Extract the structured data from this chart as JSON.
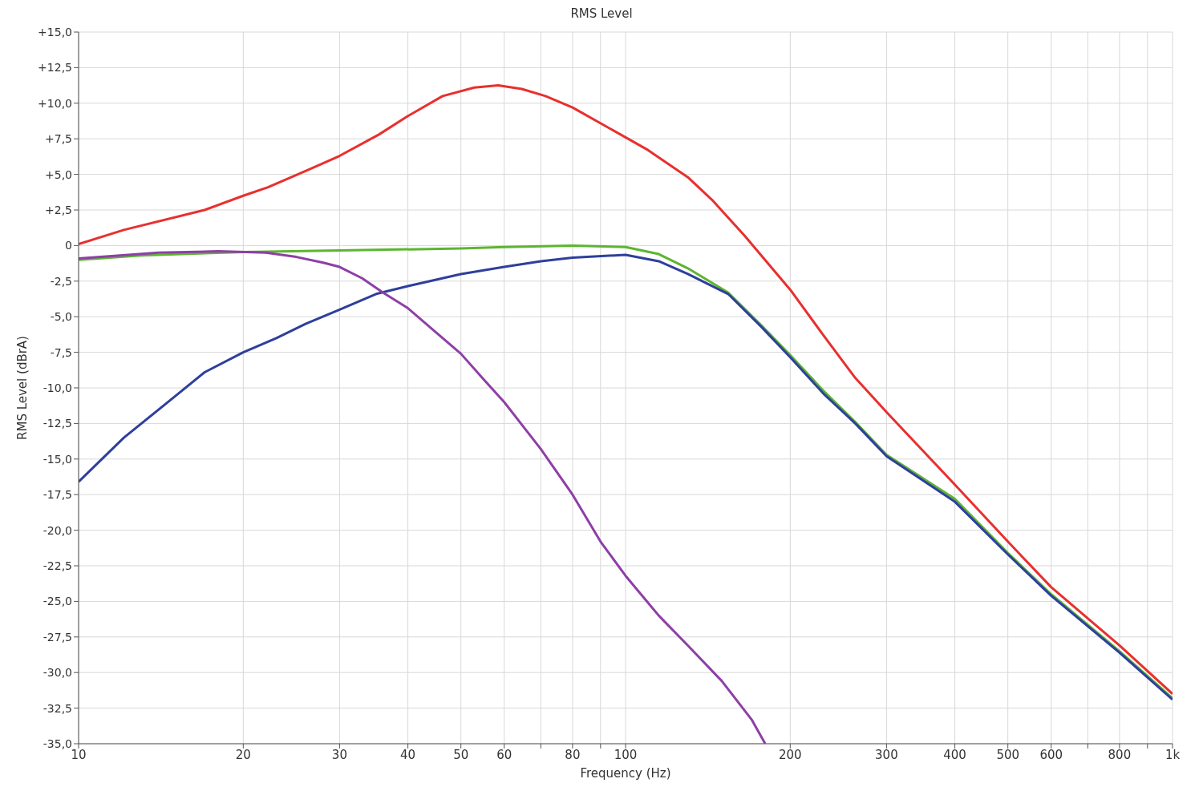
{
  "chart_data": {
    "type": "line",
    "title": "RMS Level",
    "xlabel": "Frequency (Hz)",
    "ylabel": "RMS Level (dBrA)",
    "log": "x",
    "grid": true,
    "marker": "none",
    "line_style": "solid",
    "xlim": [
      10,
      1000
    ],
    "ylim": [
      -35,
      15
    ],
    "xticks": [
      10,
      20,
      30,
      40,
      50,
      60,
      {
        "value": 70,
        "label": null
      },
      80,
      {
        "value": 90,
        "label": null
      },
      100,
      200,
      300,
      400,
      500,
      600,
      {
        "value": 700,
        "label": null
      },
      800,
      {
        "value": 900,
        "label": null
      },
      {
        "value": 1000,
        "label": "1k"
      }
    ],
    "yticks": [
      {
        "value": 15,
        "label": "+15,0"
      },
      {
        "value": 12.5,
        "label": "+12,5"
      },
      {
        "value": 10,
        "label": "+10,0"
      },
      {
        "value": 7.5,
        "label": "+7,5"
      },
      {
        "value": 5,
        "label": "+5,0"
      },
      {
        "value": 2.5,
        "label": "+2,5"
      },
      0,
      {
        "value": -2.5,
        "label": "-2,5"
      },
      {
        "value": -5,
        "label": "-5,0"
      },
      {
        "value": -7.5,
        "label": "-7,5"
      },
      {
        "value": -10,
        "label": "-10,0"
      },
      {
        "value": -12.5,
        "label": "-12,5"
      },
      {
        "value": -15,
        "label": "-15,0"
      },
      {
        "value": -17.5,
        "label": "-17,5"
      },
      {
        "value": -20,
        "label": "-20,0"
      },
      {
        "value": -22.5,
        "label": "-22,5"
      },
      {
        "value": -25,
        "label": "-25,0"
      },
      {
        "value": -27.5,
        "label": "-27,5"
      },
      {
        "value": -30,
        "label": "-30,0"
      },
      {
        "value": -32.5,
        "label": "-32,5"
      },
      {
        "value": -35,
        "label": "-35,0"
      }
    ],
    "series": [
      {
        "color": "#e8302e",
        "x": [
          10,
          12.1,
          17,
          20,
          22.2,
          26.2,
          30,
          35.4,
          40,
          46.3,
          52.9,
          58.5,
          64.6,
          71.4,
          80,
          100,
          110,
          130,
          144,
          165,
          200,
          230,
          263,
          300,
          400,
          500,
          600,
          800,
          1000
        ],
        "values": [
          0.1,
          1.1,
          2.5,
          3.5,
          4.1,
          5.3,
          6.3,
          7.8,
          9.1,
          10.5,
          11.1,
          11.25,
          11.0,
          10.5,
          9.7,
          7.6,
          6.7,
          4.8,
          3.2,
          0.7,
          -3.1,
          -6.3,
          -9.3,
          -11.7,
          -16.8,
          -20.8,
          -24.0,
          -28.1,
          -31.5
        ]
      },
      {
        "color": "#5cb531",
        "x": [
          10,
          13,
          20,
          30,
          50,
          60,
          80,
          100,
          115,
          130,
          154,
          177,
          200,
          230,
          263,
          300,
          400,
          500,
          600,
          800,
          1000
        ],
        "values": [
          -1.0,
          -0.7,
          -0.45,
          -0.35,
          -0.2,
          -0.1,
          0,
          -0.1,
          -0.6,
          -1.6,
          -3.3,
          -5.6,
          -7.7,
          -10.2,
          -12.4,
          -14.7,
          -17.8,
          -21.6,
          -24.5,
          -28.5,
          -31.8
        ]
      },
      {
        "color": "#2e3f9c",
        "x": [
          10,
          12.1,
          15,
          17,
          20,
          23,
          26,
          30,
          35,
          40,
          50,
          60,
          70,
          80,
          100,
          115,
          130,
          154,
          177,
          200,
          230,
          263,
          300,
          400,
          500,
          600,
          800,
          1000
        ],
        "values": [
          -16.6,
          -13.5,
          -10.6,
          -8.9,
          -7.5,
          -6.5,
          -5.5,
          -4.5,
          -3.4,
          -2.85,
          -2.0,
          -1.5,
          -1.1,
          -0.85,
          -0.65,
          -1.1,
          -2.0,
          -3.4,
          -5.7,
          -7.85,
          -10.4,
          -12.5,
          -14.8,
          -18.0,
          -21.7,
          -24.6,
          -28.6,
          -31.9
        ]
      },
      {
        "color": "#8e3fa6",
        "x": [
          10,
          14,
          18,
          22,
          25,
          28,
          30,
          33,
          36,
          40,
          45,
          50,
          55,
          60,
          70,
          80,
          90,
          100,
          115,
          130,
          150,
          170,
          180
        ],
        "values": [
          -0.9,
          -0.5,
          -0.4,
          -0.5,
          -0.8,
          -1.2,
          -1.5,
          -2.3,
          -3.3,
          -4.4,
          -6.1,
          -7.6,
          -9.4,
          -11.0,
          -14.3,
          -17.5,
          -20.8,
          -23.2,
          -26.0,
          -28.1,
          -30.6,
          -33.3,
          -35.0
        ]
      }
    ]
  }
}
